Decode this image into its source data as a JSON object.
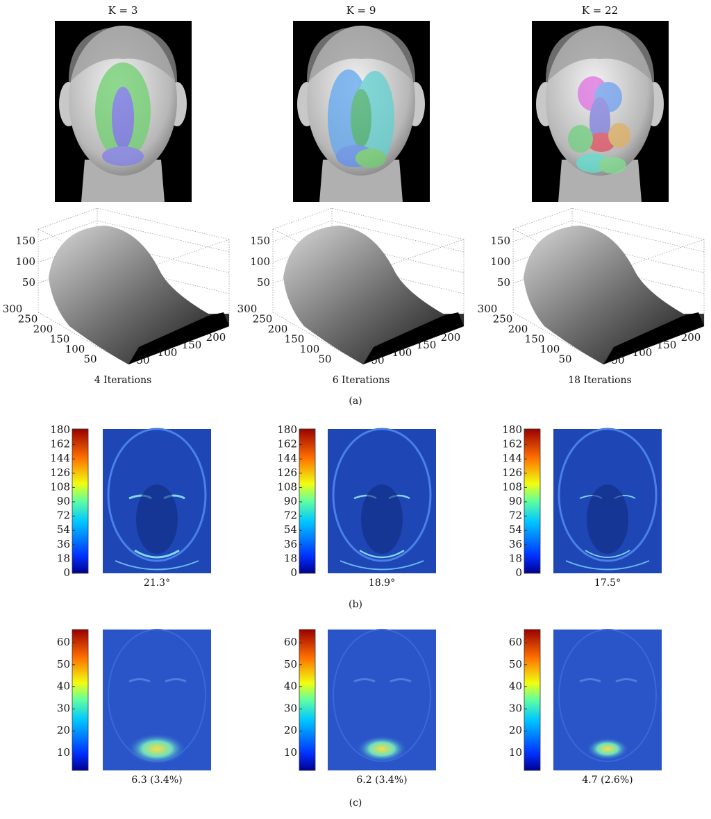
{
  "panels": {
    "a": {
      "label": "(a)",
      "z_ticks": [
        150,
        100,
        50
      ],
      "y_ticks": [
        300,
        250,
        200,
        150,
        100,
        50
      ],
      "x_ticks": [
        50,
        100,
        150,
        200
      ],
      "columns": [
        {
          "title": "K = 3",
          "caption": "4 Iterations"
        },
        {
          "title": "K = 9",
          "caption": "6 Iterations"
        },
        {
          "title": "K = 22",
          "caption": "18 Iterations"
        }
      ]
    },
    "b": {
      "label": "(b)",
      "colorbar_ticks": [
        180,
        162,
        144,
        126,
        108,
        90,
        72,
        54,
        36,
        18,
        0
      ],
      "captions": [
        "21.3°",
        "18.9°",
        "17.5°"
      ]
    },
    "c": {
      "label": "(c)",
      "colorbar_ticks": [
        60,
        50,
        40,
        30,
        20,
        10
      ],
      "captions": [
        "6.3 (3.4%)",
        "6.2 (3.4%)",
        "4.7 (2.6%)"
      ]
    }
  }
}
